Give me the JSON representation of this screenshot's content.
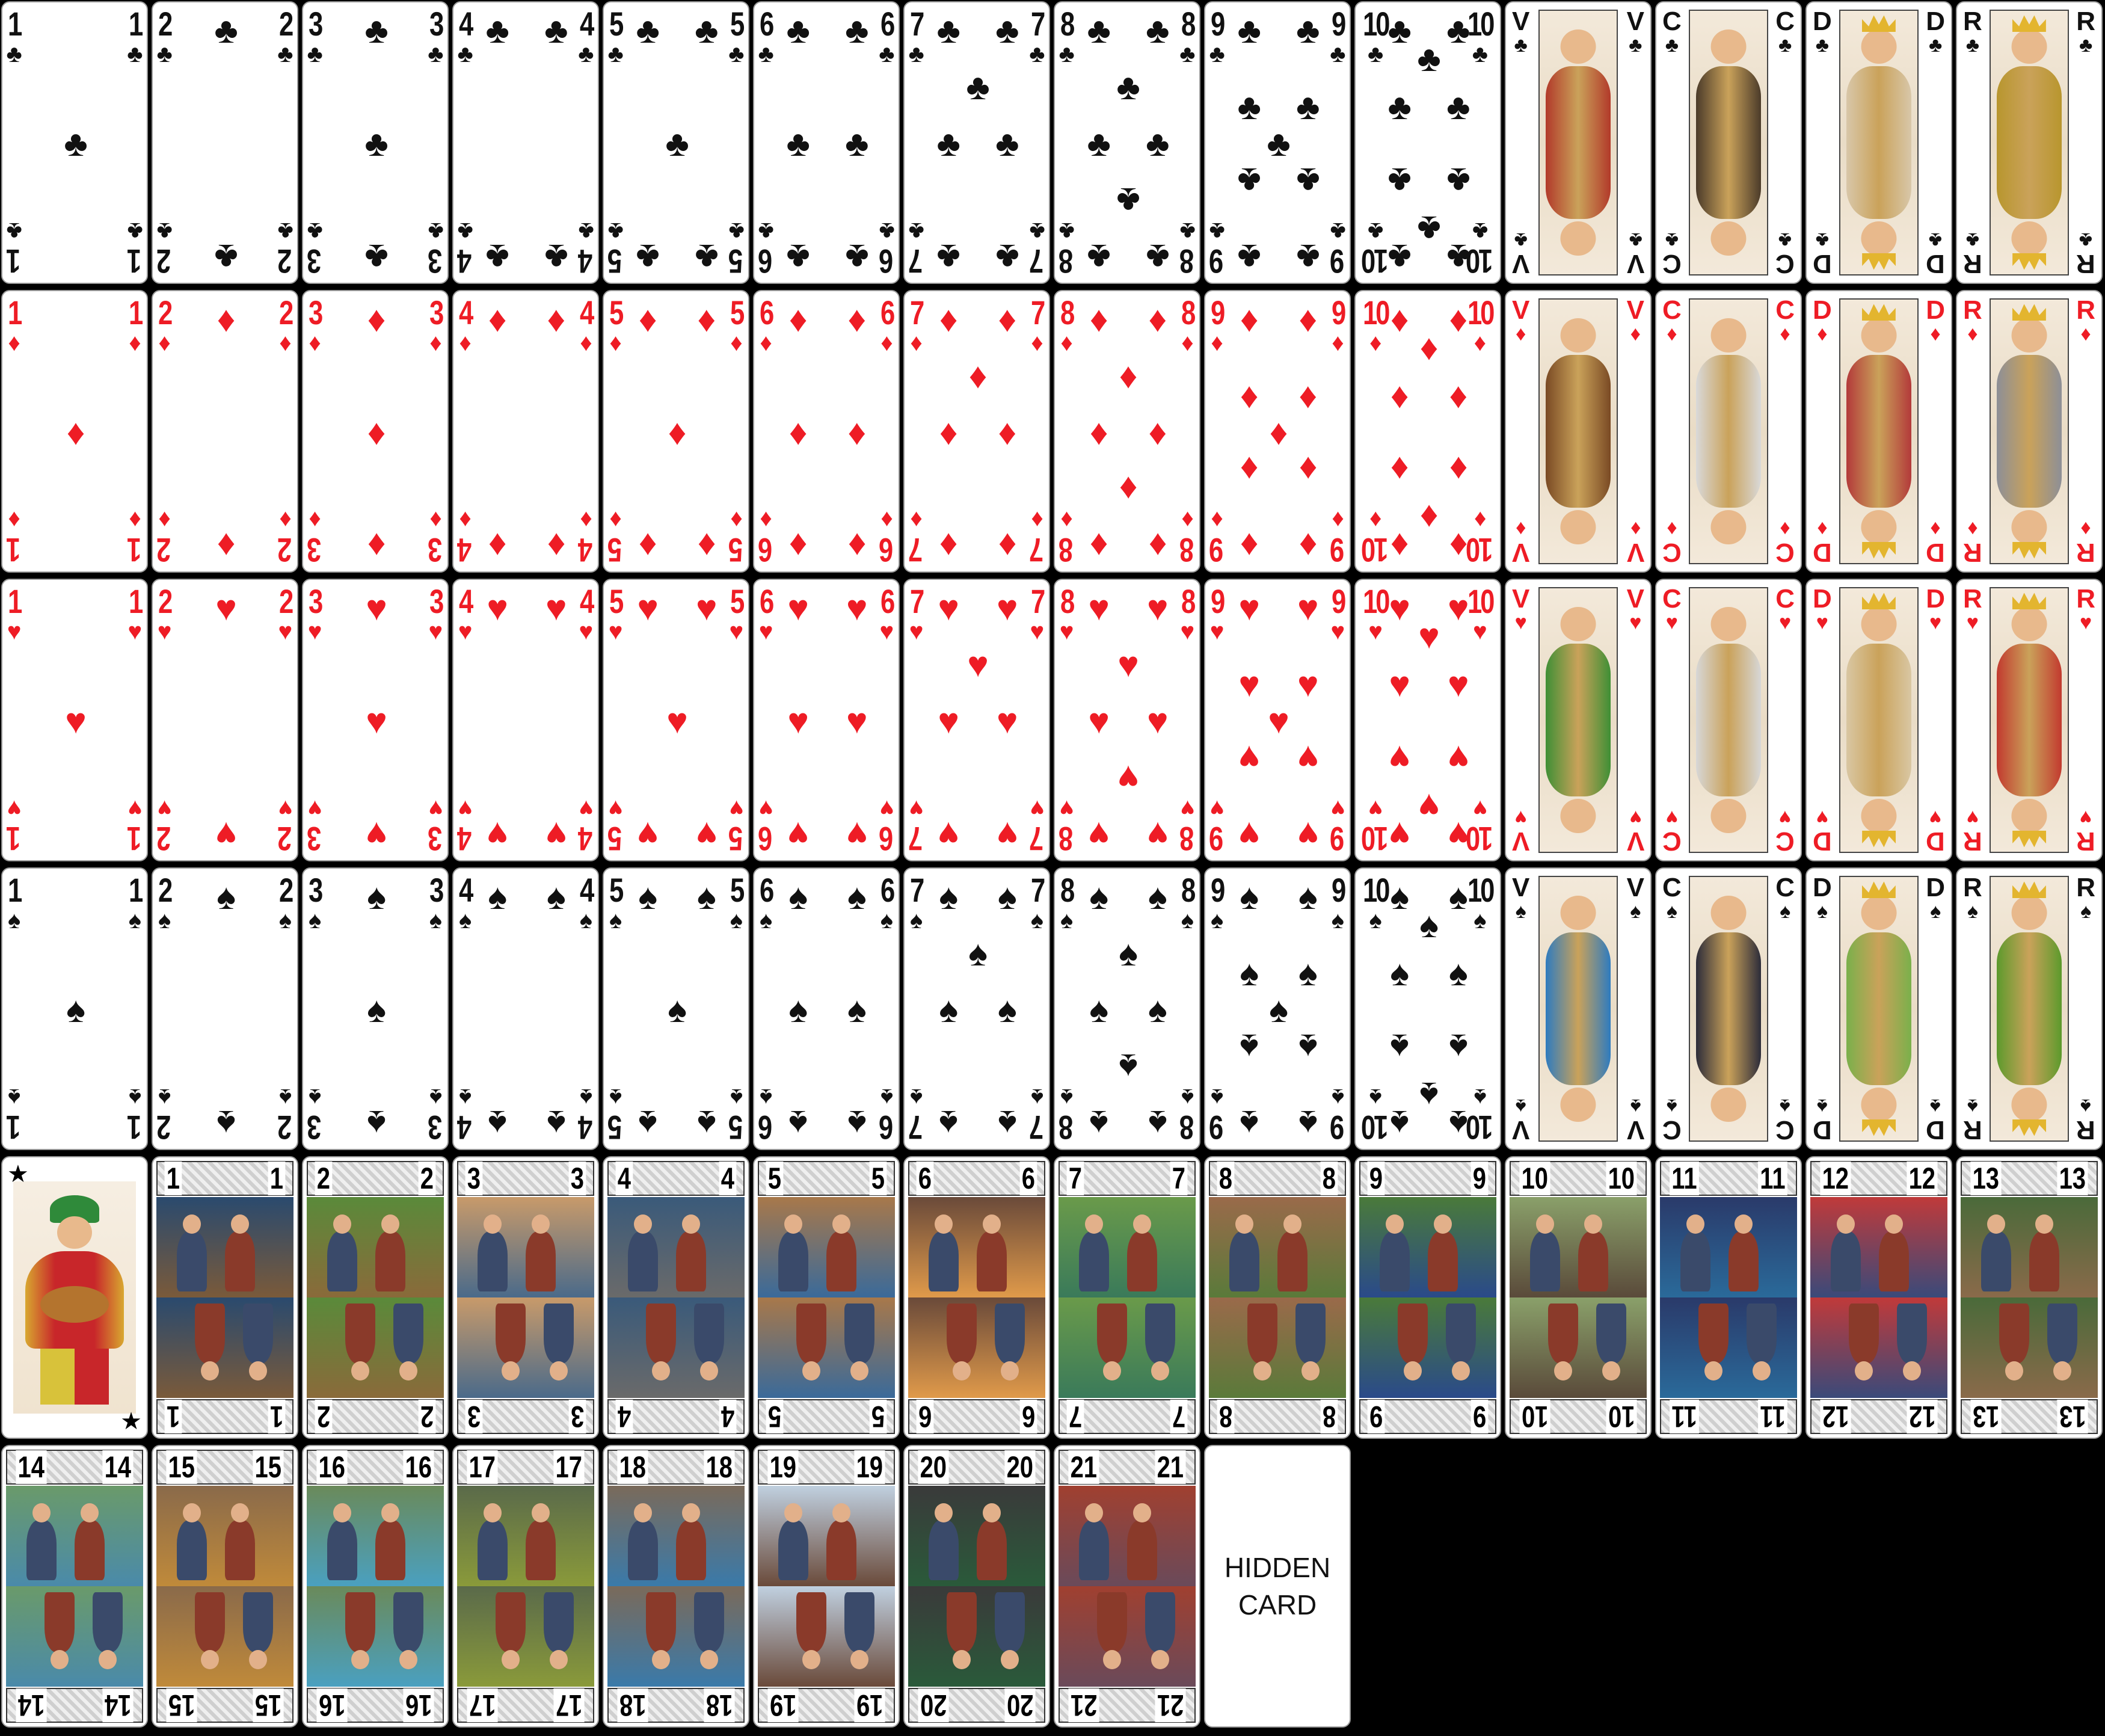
{
  "suits": [
    {
      "name": "clubs",
      "symbol": "♣",
      "color": "#111111"
    },
    {
      "name": "diamonds",
      "symbol": "♦",
      "color": "#ee1c25"
    },
    {
      "name": "hearts",
      "symbol": "♥",
      "color": "#ee1c25"
    },
    {
      "name": "spades",
      "symbol": "♠",
      "color": "#111111"
    }
  ],
  "pip_ranks": [
    "1",
    "2",
    "3",
    "4",
    "5",
    "6",
    "7",
    "8",
    "9",
    "10"
  ],
  "court_ranks": [
    "V",
    "C",
    "D",
    "R"
  ],
  "court_colors": [
    [
      "#b23a2a",
      "#4b3b2a",
      "#d8c7a9",
      "#b8962e"
    ],
    [
      "#7a4a24",
      "#d9d9d9",
      "#b33a3a",
      "#8d8f97"
    ],
    [
      "#3f8f35",
      "#d7d7d7",
      "#d9c7a3",
      "#c23a2f"
    ],
    [
      "#2e7bbf",
      "#2c2c3a",
      "#7ab04b",
      "#5c9a2c"
    ]
  ],
  "excuse": {
    "name": "excuse"
  },
  "trumps": [
    "1",
    "2",
    "3",
    "4",
    "5",
    "6",
    "7",
    "8",
    "9",
    "10",
    "11",
    "12",
    "13",
    "14",
    "15",
    "16",
    "17",
    "18",
    "19",
    "20",
    "21"
  ],
  "trump_colors": [
    [
      "#2a4a6e",
      "#7a5a3a"
    ],
    [
      "#5a8a3a",
      "#8a6a3a"
    ],
    [
      "#c89a6a",
      "#4a6a8a"
    ],
    [
      "#3a5a7a",
      "#6a6a6a"
    ],
    [
      "#a8784a",
      "#3a6a9a"
    ],
    [
      "#6a4a3a",
      "#e09a4a"
    ],
    [
      "#6a9a4a",
      "#3a7a5a"
    ],
    [
      "#9a6a4a",
      "#5a7a3a"
    ],
    [
      "#4a7a3a",
      "#2a4a8a"
    ],
    [
      "#8aa06a",
      "#5a4a3a"
    ],
    [
      "#2a3a6a",
      "#2a6a9a"
    ],
    [
      "#c03a3a",
      "#3a4a7a"
    ],
    [
      "#4a6a3a",
      "#8a6a4a"
    ],
    [
      "#6a9a6a",
      "#4a8aaa"
    ],
    [
      "#8a6a4a",
      "#c08a3a"
    ],
    [
      "#6a8a5a",
      "#4aa0c0"
    ],
    [
      "#5a6a4a",
      "#8a9a3a"
    ],
    [
      "#7a6a5a",
      "#3a7aaa"
    ],
    [
      "#c0d0e0",
      "#6a4a3a"
    ],
    [
      "#3a3a3a",
      "#2a5a3a"
    ],
    [
      "#a04030",
      "#6a4a5a"
    ]
  ],
  "hidden_card": {
    "line1": "HIDDEN",
    "line2": "CARD"
  }
}
